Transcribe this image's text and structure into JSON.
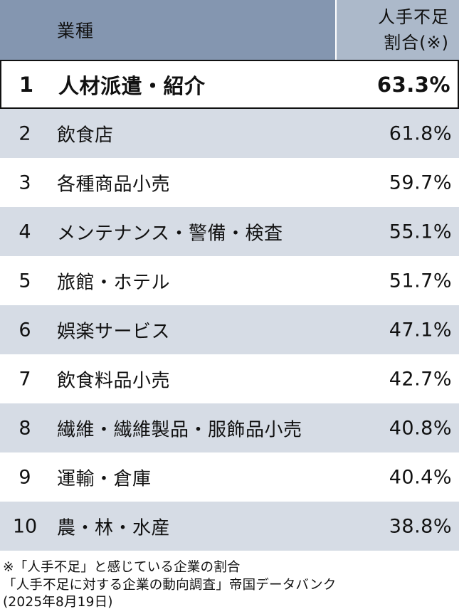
{
  "header": {
    "industry_label": "業種",
    "rate_label_line1": "人手不足",
    "rate_label_line2": "割合(※)"
  },
  "chart_data": {
    "type": "table",
    "columns": [
      "業種",
      "人手不足割合(※)"
    ],
    "rows": [
      {
        "rank": "1",
        "industry": "人材派遣・紹介",
        "rate": 63.3,
        "rate_label": "63.3%"
      },
      {
        "rank": "2",
        "industry": "飲食店",
        "rate": 61.8,
        "rate_label": "61.8%"
      },
      {
        "rank": "3",
        "industry": "各種商品小売",
        "rate": 59.7,
        "rate_label": "59.7%"
      },
      {
        "rank": "4",
        "industry": "メンテナンス・警備・検査",
        "rate": 55.1,
        "rate_label": "55.1%"
      },
      {
        "rank": "5",
        "industry": "旅館・ホテル",
        "rate": 51.7,
        "rate_label": "51.7%"
      },
      {
        "rank": "6",
        "industry": "娯楽サービス",
        "rate": 47.1,
        "rate_label": "47.1%"
      },
      {
        "rank": "7",
        "industry": "飲食料品小売",
        "rate": 42.7,
        "rate_label": "42.7%"
      },
      {
        "rank": "8",
        "industry": "繊維・繊維製品・服飾品小売",
        "rate": 40.8,
        "rate_label": "40.8%"
      },
      {
        "rank": "9",
        "industry": "運輸・倉庫",
        "rate": 40.4,
        "rate_label": "40.4%"
      },
      {
        "rank": "10",
        "industry": "農・林・水産",
        "rate": 38.8,
        "rate_label": "38.8%"
      }
    ]
  },
  "colors": {
    "header_dark": "#8496b0",
    "header_light": "#acb9ca",
    "row_alt": "#d6dce5",
    "row_plain": "#ffffff",
    "highlight_border": "#111111"
  },
  "notes": {
    "line1": "※「人手不足」と感じている企業の割合",
    "line2": "「人手不足に対する企業の動向調査」帝国データバンク",
    "line3": "(2025年8月19日)"
  }
}
